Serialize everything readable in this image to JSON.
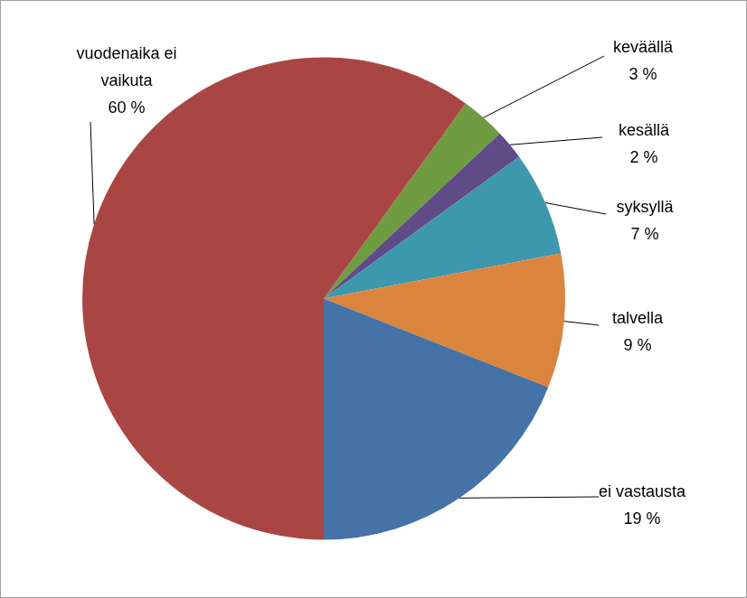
{
  "chart_data": {
    "type": "pie",
    "categories": [
      "keväällä",
      "kesällä",
      "syksyllä",
      "talvella",
      "ei vastausta",
      "vuodenaika ei vaikuta"
    ],
    "values": [
      3,
      2,
      7,
      9,
      19,
      60
    ],
    "value_labels": [
      "3 %",
      "2 %",
      "7 %",
      "9 %",
      "19 %",
      "60 %"
    ],
    "colors": [
      "#6f9c41",
      "#5e4b87",
      "#3d98ae",
      "#db843d",
      "#4572a7",
      "#a94644"
    ],
    "data_labels": true
  }
}
